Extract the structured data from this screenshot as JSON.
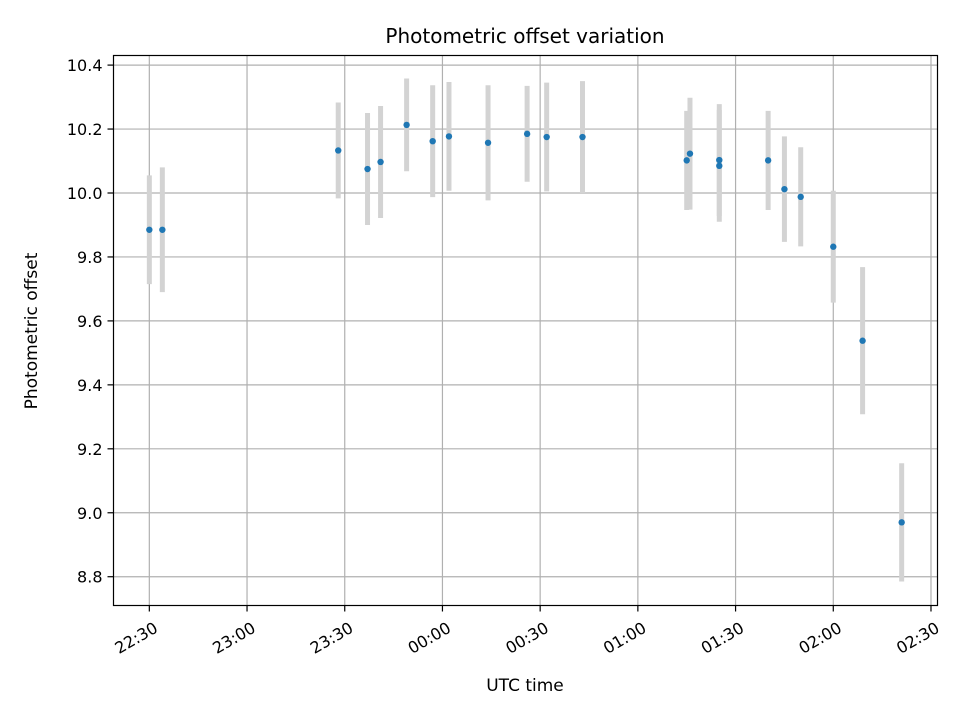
{
  "chart_data": {
    "type": "scatter",
    "title": "Photometric offset variation",
    "xlabel": "UTC time",
    "ylabel": "Photometric offset",
    "x_ticks": [
      "22:30",
      "23:00",
      "23:30",
      "00:00",
      "00:30",
      "01:00",
      "01:30",
      "02:00",
      "02:30"
    ],
    "y_ticks": [
      "8.8",
      "9.0",
      "9.2",
      "9.4",
      "9.6",
      "9.8",
      "10.0",
      "10.2",
      "10.4"
    ],
    "xlim": [
      "22:19",
      "02:32"
    ],
    "ylim": [
      8.71,
      10.43
    ],
    "grid": true,
    "point_color": "#1f77b4",
    "errorbar_color": "#d3d3d3",
    "points": [
      {
        "x": "22:30",
        "y": 9.885,
        "err": 0.17
      },
      {
        "x": "22:34",
        "y": 9.885,
        "err": 0.195
      },
      {
        "x": "23:28",
        "y": 10.133,
        "err": 0.15
      },
      {
        "x": "23:37",
        "y": 10.075,
        "err": 0.175
      },
      {
        "x": "23:41",
        "y": 10.097,
        "err": 0.175
      },
      {
        "x": "23:49",
        "y": 10.213,
        "err": 0.145
      },
      {
        "x": "23:57",
        "y": 10.162,
        "err": 0.175
      },
      {
        "x": "00:02",
        "y": 10.177,
        "err": 0.17
      },
      {
        "x": "00:14",
        "y": 10.157,
        "err": 0.18
      },
      {
        "x": "00:26",
        "y": 10.185,
        "err": 0.15
      },
      {
        "x": "00:32",
        "y": 10.175,
        "err": 0.17
      },
      {
        "x": "00:43",
        "y": 10.175,
        "err": 0.175
      },
      {
        "x": "01:15",
        "y": 10.102,
        "err": 0.155
      },
      {
        "x": "01:16",
        "y": 10.123,
        "err": 0.175
      },
      {
        "x": "01:25",
        "y": 10.085,
        "err": 0.175
      },
      {
        "x": "01:25",
        "y": 10.103,
        "err": 0.175
      },
      {
        "x": "01:40",
        "y": 10.102,
        "err": 0.155
      },
      {
        "x": "01:45",
        "y": 10.012,
        "err": 0.165
      },
      {
        "x": "01:50",
        "y": 9.988,
        "err": 0.155
      },
      {
        "x": "02:00",
        "y": 9.832,
        "err": 0.175
      },
      {
        "x": "02:09",
        "y": 9.538,
        "err": 0.23
      },
      {
        "x": "02:21",
        "y": 8.97,
        "err": 0.185
      }
    ]
  }
}
